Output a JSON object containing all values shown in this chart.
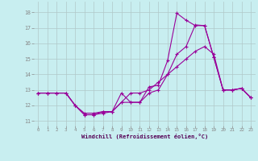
{
  "xlabel": "Windchill (Refroidissement éolien,°C)",
  "bg_color": "#c8eef0",
  "line_color": "#990099",
  "grid_color": "#b0c8c8",
  "xlim": [
    -0.5,
    23.5
  ],
  "ylim": [
    10.7,
    18.7
  ],
  "yticks": [
    11,
    12,
    13,
    14,
    15,
    16,
    17,
    18
  ],
  "xticks": [
    0,
    1,
    2,
    3,
    4,
    5,
    6,
    7,
    8,
    9,
    10,
    11,
    12,
    13,
    14,
    15,
    16,
    17,
    18,
    19,
    20,
    21,
    22,
    23
  ],
  "series": [
    {
      "x": [
        0,
        1,
        2,
        3,
        4,
        5,
        6,
        7,
        8,
        9,
        10,
        11,
        12,
        13,
        14,
        15,
        16,
        17,
        18,
        19,
        20,
        21,
        22,
        23
      ],
      "y": [
        12.8,
        12.8,
        12.8,
        12.8,
        12.0,
        11.4,
        11.4,
        11.6,
        11.6,
        12.8,
        12.2,
        12.2,
        13.2,
        13.3,
        14.9,
        17.95,
        17.5,
        17.15,
        17.15,
        15.1,
        13.0,
        13.0,
        13.1,
        12.5
      ]
    },
    {
      "x": [
        0,
        1,
        2,
        3,
        4,
        5,
        6,
        7,
        8,
        9,
        10,
        11,
        12,
        13,
        14,
        15,
        16,
        17,
        18,
        19,
        20,
        21,
        22,
        23
      ],
      "y": [
        12.8,
        12.8,
        12.8,
        12.8,
        12.0,
        11.4,
        11.4,
        11.5,
        11.6,
        12.2,
        12.2,
        12.2,
        12.8,
        13.0,
        14.0,
        15.3,
        15.8,
        17.2,
        17.15,
        15.1,
        13.0,
        13.0,
        13.1,
        12.5
      ]
    },
    {
      "x": [
        0,
        1,
        2,
        3,
        4,
        5,
        6,
        7,
        8,
        9,
        10,
        11,
        12,
        13,
        14,
        15,
        16,
        17,
        18,
        19,
        20,
        21,
        22,
        23
      ],
      "y": [
        12.8,
        12.8,
        12.8,
        12.8,
        12.0,
        11.5,
        11.5,
        11.6,
        11.6,
        12.2,
        12.8,
        12.8,
        13.0,
        13.5,
        14.0,
        14.5,
        15.0,
        15.5,
        15.8,
        15.3,
        13.0,
        13.0,
        13.1,
        12.5
      ]
    }
  ]
}
